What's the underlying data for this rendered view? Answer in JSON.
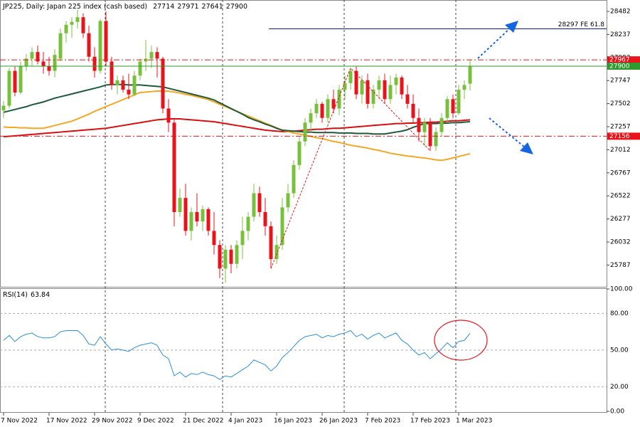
{
  "chart_data": {
    "type": "candlestick",
    "title": "JP225, Daily:  Japan 225 index (cash based)",
    "categories": [
      "7 Nov 2022",
      null,
      null,
      null,
      null,
      null,
      null,
      null,
      "17 Nov 2022",
      null,
      null,
      null,
      null,
      null,
      null,
      null,
      "29 Nov 2022",
      null,
      null,
      null,
      null,
      null,
      null,
      null,
      "9 Dec 2022",
      null,
      null,
      null,
      null,
      null,
      null,
      null,
      "21 Dec 2022",
      null,
      null,
      null,
      null,
      null,
      null,
      null,
      "4 Jan 2023",
      null,
      null,
      null,
      null,
      null,
      null,
      null,
      "16 Jan 2023",
      null,
      null,
      null,
      null,
      null,
      null,
      null,
      "26 Jan 2023",
      null,
      null,
      null,
      null,
      null,
      null,
      null,
      "7 Feb 2023",
      null,
      null,
      null,
      null,
      null,
      null,
      null,
      "17 Feb 2023",
      null,
      null,
      null,
      null,
      null,
      null,
      null,
      "1 Mar 2023",
      null,
      null
    ],
    "open": [
      27430,
      27480,
      27850,
      27620,
      27900,
      27980,
      28050,
      27950,
      27900,
      27850,
      27980,
      28250,
      28340,
      28370,
      28420,
      28250,
      28000,
      27850,
      28380,
      27950,
      27700,
      27750,
      27650,
      27600,
      27800,
      27950,
      27980,
      28050,
      27980,
      27450,
      27300,
      26350,
      26500,
      26150,
      26350,
      26250,
      26380,
      26150,
      26000,
      25750,
      25950,
      25800,
      26000,
      26150,
      26300,
      26550,
      26350,
      26200,
      25850,
      26000,
      26400,
      26550,
      26850,
      27100,
      27300,
      27400,
      27500,
      27350,
      27550,
      27450,
      27650,
      27720,
      27850,
      27600,
      27750,
      27500,
      27650,
      27750,
      27550,
      27700,
      27780,
      27600,
      27500,
      27350,
      27200,
      27300,
      27050,
      27200,
      27350,
      27550,
      27400,
      27650,
      27714
    ],
    "high": [
      27530,
      27880,
      27900,
      27950,
      28030,
      28100,
      28120,
      28050,
      28000,
      28080,
      28300,
      28380,
      28420,
      28500,
      28460,
      28330,
      28100,
      28400,
      28480,
      28000,
      27800,
      27800,
      27820,
      27850,
      27980,
      28180,
      28120,
      28100,
      28000,
      27550,
      27350,
      26600,
      26650,
      26400,
      26550,
      26420,
      26400,
      26350,
      26050,
      26000,
      26000,
      26050,
      26300,
      26350,
      26650,
      26620,
      26500,
      26250,
      26100,
      26500,
      26650,
      26900,
      27150,
      27350,
      27450,
      27550,
      27520,
      27600,
      27650,
      27700,
      27800,
      27880,
      27900,
      27800,
      27820,
      27700,
      27800,
      27820,
      27800,
      27820,
      27800,
      27700,
      27600,
      27450,
      27350,
      27350,
      27250,
      27400,
      27580,
      27600,
      27700,
      27750,
      27971
    ],
    "low": [
      27350,
      27450,
      27580,
      27600,
      27850,
      27900,
      27920,
      27820,
      27800,
      27780,
      27950,
      28150,
      28200,
      28300,
      28200,
      27950,
      27780,
      27820,
      27900,
      27650,
      27600,
      27620,
      27550,
      27580,
      27750,
      27850,
      27880,
      27780,
      27400,
      27200,
      26200,
      26300,
      26100,
      26050,
      26200,
      26150,
      26100,
      25900,
      25650,
      25600,
      25700,
      25750,
      25850,
      26050,
      26250,
      26300,
      26100,
      25750,
      25800,
      25950,
      26350,
      26500,
      26800,
      27050,
      27200,
      27350,
      27300,
      27300,
      27400,
      27380,
      27550,
      27650,
      27550,
      27500,
      27450,
      27450,
      27550,
      27500,
      27500,
      27600,
      27550,
      27450,
      27300,
      27100,
      27050,
      27000,
      27000,
      27150,
      27300,
      27350,
      27380,
      27550,
      27641
    ],
    "close": [
      27480,
      27850,
      27620,
      27900,
      27980,
      28050,
      27950,
      27900,
      27850,
      28020,
      28250,
      28340,
      28370,
      28420,
      28250,
      28000,
      27850,
      28380,
      27950,
      27700,
      27750,
      27650,
      27600,
      27800,
      27950,
      27980,
      28050,
      27980,
      27450,
      27300,
      26350,
      26500,
      26150,
      26350,
      26250,
      26380,
      26150,
      26000,
      25750,
      25950,
      25800,
      26000,
      26150,
      26300,
      26550,
      26350,
      26200,
      25850,
      26000,
      26400,
      26550,
      26850,
      27100,
      27300,
      27400,
      27500,
      27350,
      27550,
      27450,
      27650,
      27720,
      27850,
      27600,
      27750,
      27500,
      27650,
      27750,
      27550,
      27700,
      27780,
      27600,
      27500,
      27350,
      27200,
      27300,
      27050,
      27200,
      27350,
      27550,
      27400,
      27650,
      27700,
      27900
    ],
    "up_color": "#78c03c",
    "down_color": "#e8141c",
    "ylim": [
      25556,
      28603
    ],
    "yticks": [
      28482,
      28237,
      27992,
      27747,
      27502,
      27257,
      27012,
      26767,
      26522,
      26277,
      26032,
      25787
    ],
    "moving_averages": [
      {
        "color": "#d90f0f",
        "values": [
          27150,
          27155,
          27160,
          27165,
          27170,
          27175,
          27180,
          27185,
          27190,
          27195,
          27200,
          27205,
          27210,
          27215,
          27220,
          27225,
          27230,
          27235,
          27240,
          27250,
          27260,
          27270,
          27280,
          27290,
          27300,
          27310,
          27320,
          27330,
          27335,
          27340,
          27340,
          27340,
          27335,
          27330,
          27325,
          27320,
          27315,
          27310,
          27300,
          27290,
          27280,
          27270,
          27260,
          27250,
          27240,
          27230,
          27220,
          27215,
          27210,
          27205,
          27205,
          27210,
          27215,
          27220,
          27225,
          27230,
          27230,
          27235,
          27240,
          27240,
          27245,
          27250,
          27255,
          27260,
          27265,
          27270,
          27275,
          27280,
          27285,
          27290,
          27290,
          27295,
          27295,
          27300,
          27300,
          27305,
          27305,
          27310,
          27315,
          27320,
          27320,
          27325,
          27330
        ]
      },
      {
        "color": "#f5a623",
        "values": [
          27255,
          27250,
          27250,
          27245,
          27245,
          27240,
          27240,
          27240,
          27255,
          27270,
          27285,
          27300,
          27315,
          27340,
          27365,
          27390,
          27420,
          27445,
          27470,
          27495,
          27520,
          27545,
          27570,
          27595,
          27620,
          27625,
          27630,
          27635,
          27635,
          27635,
          27625,
          27615,
          27600,
          27590,
          27575,
          27560,
          27545,
          27520,
          27495,
          27470,
          27445,
          27420,
          27395,
          27370,
          27345,
          27320,
          27295,
          27270,
          27245,
          27220,
          27205,
          27190,
          27180,
          27165,
          27155,
          27140,
          27130,
          27115,
          27100,
          27090,
          27075,
          27060,
          27050,
          27040,
          27030,
          27015,
          27005,
          26990,
          26975,
          26965,
          26955,
          26945,
          26940,
          26930,
          26925,
          26915,
          26905,
          26900,
          26910,
          26925,
          26940,
          26955,
          26970
        ]
      },
      {
        "color": "#1e5a3c",
        "values": [
          27410,
          27425,
          27440,
          27455,
          27470,
          27490,
          27505,
          27520,
          27540,
          27560,
          27575,
          27590,
          27605,
          27620,
          27635,
          27650,
          27665,
          27680,
          27700,
          27705,
          27705,
          27705,
          27700,
          27700,
          27700,
          27695,
          27690,
          27685,
          27680,
          27665,
          27650,
          27635,
          27620,
          27605,
          27590,
          27575,
          27560,
          27540,
          27510,
          27480,
          27450,
          27420,
          27390,
          27355,
          27330,
          27310,
          27285,
          27265,
          27240,
          27220,
          27215,
          27210,
          27205,
          27200,
          27200,
          27195,
          27195,
          27195,
          27195,
          27190,
          27190,
          27190,
          27185,
          27185,
          27185,
          27180,
          27180,
          27180,
          27190,
          27200,
          27210,
          27225,
          27250,
          27270,
          27290,
          27290,
          27290,
          27295,
          27295,
          27300,
          27300,
          27305,
          27310
        ]
      }
    ],
    "levels": [
      {
        "value": 27967,
        "color": "#e8141c",
        "style": "dashdot"
      },
      {
        "value": 27900,
        "color": "#2e9b2e",
        "style": "solid"
      },
      {
        "value": 27156,
        "color": "#e8141c",
        "style": "dashdot"
      }
    ],
    "fe_level": {
      "value": 28297,
      "label": "28297 FE 61.8",
      "color": "#0a1a9c"
    },
    "indicator": {
      "type": "line",
      "name": "RSI(14)",
      "color": "#2b8fdc",
      "values": [
        58,
        62,
        57,
        61,
        63,
        64,
        61,
        60,
        60,
        61,
        65,
        66,
        66,
        66,
        62,
        55,
        54,
        61,
        55,
        50,
        51,
        50,
        49,
        52,
        54,
        55,
        56,
        54,
        46,
        43,
        29,
        32,
        28,
        31,
        30,
        32,
        30,
        29,
        26,
        29,
        28,
        31,
        34,
        37,
        42,
        40,
        38,
        33,
        37,
        44,
        48,
        53,
        58,
        61,
        62,
        63,
        60,
        62,
        61,
        63,
        64,
        66,
        61,
        63,
        59,
        62,
        64,
        60,
        62,
        64,
        58,
        55,
        50,
        46,
        48,
        43,
        47,
        51,
        56,
        52,
        57,
        58,
        63.84
      ],
      "ylim": [
        0,
        100
      ],
      "yticks": [
        {
          "value": 100,
          "label": "100.00"
        },
        {
          "value": 80,
          "label": "80.00"
        },
        {
          "value": 50,
          "label": "50.00"
        },
        {
          "value": 20,
          "label": "20.00"
        },
        {
          "value": 0,
          "label": "0.00"
        }
      ]
    }
  }
}
